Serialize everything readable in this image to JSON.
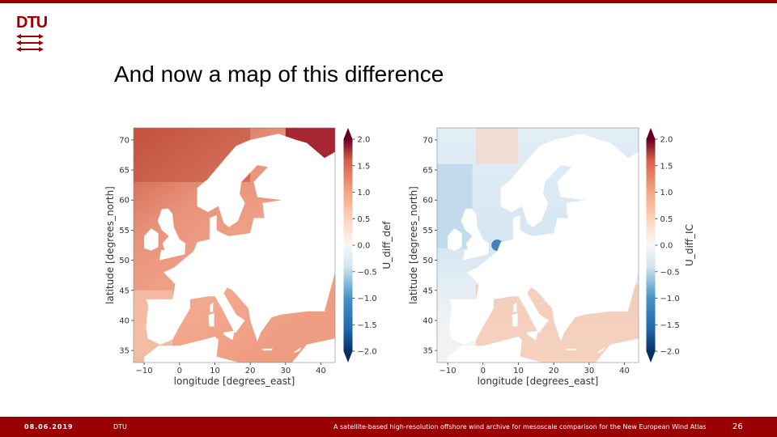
{
  "header": {
    "logo_text": "DTU"
  },
  "slide": {
    "title": "And now a map of this difference"
  },
  "footer": {
    "date": "08.06.2019",
    "org": "DTU",
    "description": "A satellite-based high-resolution offshore wind archive for mesoscale comparison for the New European Wind Atlas",
    "page": "26"
  },
  "colors": {
    "brand": "#990000",
    "positive": "#b2182b",
    "negative": "#2166ac",
    "neutral": "#f7f7f7"
  },
  "chart_data": [
    {
      "type": "heatmap",
      "title": "",
      "xlabel": "longitude [degrees_east]",
      "ylabel": "latitude [degrees_north]",
      "xticks": [
        -10,
        0,
        10,
        20,
        30,
        40
      ],
      "yticks": [
        35,
        40,
        45,
        50,
        55,
        60,
        65,
        70
      ],
      "xlim": [
        -13,
        44
      ],
      "ylim": [
        33,
        72
      ],
      "colorbar": {
        "label": "U_diff_def",
        "min": -2.0,
        "max": 2.0,
        "cmap": "RdBu_r",
        "ticks": [
          "2.0",
          "1.5",
          "1.0",
          "0.5",
          "0.0",
          "−0.5",
          "−1.0",
          "−1.5",
          "−2.0"
        ]
      },
      "summary": "mostly positive difference (0.5 to 1.5) over ocean; strongest (~2.0) in the northern Norwegian/Barents Sea; small negative patches near coasts"
    },
    {
      "type": "heatmap",
      "title": "",
      "xlabel": "longitude [degrees_east]",
      "ylabel": "latitude [degrees_north]",
      "xticks": [
        -10,
        0,
        10,
        20,
        30,
        40
      ],
      "yticks": [
        35,
        40,
        45,
        50,
        55,
        60,
        65,
        70
      ],
      "xlim": [
        -13,
        44
      ],
      "ylim": [
        33,
        72
      ],
      "colorbar": {
        "label": "U_diff_IC",
        "min": -2.0,
        "max": 2.0,
        "cmap": "RdBu_r",
        "ticks": [
          "2.0",
          "1.5",
          "1.0",
          "0.5",
          "0.0",
          "−0.5",
          "−1.0",
          "−1.5",
          "−2.0"
        ]
      },
      "summary": "near-zero to slightly negative (-0.5 to 0.0) over the Atlantic; slightly positive (~0.5) in Mediterranean and Black Sea; strong negative along Dutch/Danish coast"
    }
  ]
}
